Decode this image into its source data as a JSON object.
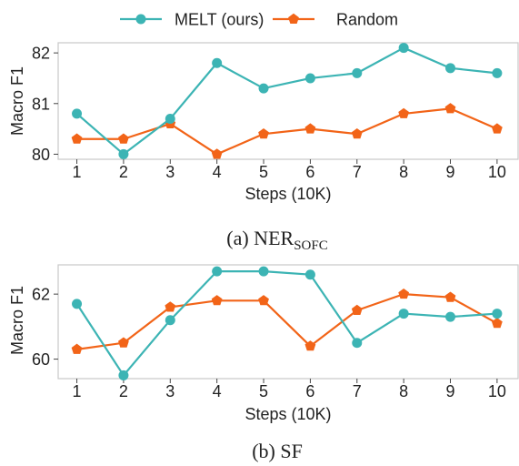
{
  "legend": {
    "placement": "top-center",
    "entries": [
      {
        "label": "MELT (ours)",
        "color": "#3cb4b4",
        "marker": "circle"
      },
      {
        "label": "Random",
        "color": "#f26418",
        "marker": "pentagon"
      }
    ]
  },
  "chart_data": [
    {
      "type": "line",
      "caption": {
        "prefix": "(a) NER",
        "subscript": "SOFC"
      },
      "xlabel": "Steps (10K)",
      "ylabel": "Macro F1",
      "x": [
        1,
        2,
        3,
        4,
        5,
        6,
        7,
        8,
        9,
        10
      ],
      "xlim": [
        0.6,
        10.45
      ],
      "ylim": [
        79.9,
        82.2
      ],
      "yticks": [
        80,
        81,
        82
      ],
      "grid": false,
      "series": [
        {
          "name": "MELT (ours)",
          "color": "#3cb4b4",
          "marker": "circle",
          "values": [
            80.8,
            80.0,
            80.7,
            81.8,
            81.3,
            81.5,
            81.6,
            82.1,
            81.7,
            81.6
          ]
        },
        {
          "name": "Random",
          "color": "#f26418",
          "marker": "pentagon",
          "values": [
            80.3,
            80.3,
            80.6,
            80.0,
            80.4,
            80.5,
            80.4,
            80.8,
            80.9,
            80.5
          ]
        }
      ]
    },
    {
      "type": "line",
      "caption": {
        "prefix": "(b) SF",
        "subscript": ""
      },
      "xlabel": "Steps (10K)",
      "ylabel": "Macro F1",
      "x": [
        1,
        2,
        3,
        4,
        5,
        6,
        7,
        8,
        9,
        10
      ],
      "xlim": [
        0.6,
        10.45
      ],
      "ylim": [
        59.4,
        62.9
      ],
      "yticks": [
        60,
        62
      ],
      "grid": false,
      "series": [
        {
          "name": "MELT (ours)",
          "color": "#3cb4b4",
          "marker": "circle",
          "values": [
            61.7,
            59.5,
            61.2,
            62.7,
            62.7,
            62.6,
            60.5,
            61.4,
            61.3,
            61.4
          ]
        },
        {
          "name": "Random",
          "color": "#f26418",
          "marker": "pentagon",
          "values": [
            60.3,
            60.5,
            61.6,
            61.8,
            61.8,
            60.4,
            61.5,
            62.0,
            61.9,
            61.1
          ]
        }
      ]
    }
  ]
}
